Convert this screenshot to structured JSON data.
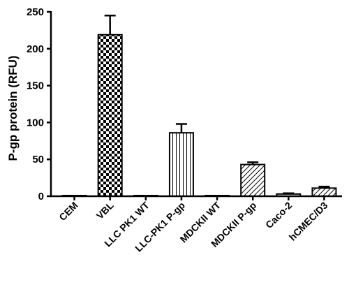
{
  "chart_data": {
    "type": "bar",
    "title": "",
    "xlabel": "",
    "ylabel": "P-gp protein (RFU)",
    "ylim": [
      0,
      250
    ],
    "yticks": [
      0,
      50,
      100,
      150,
      200,
      250
    ],
    "grid": false,
    "legend": "none",
    "categories": [
      "CEM",
      "VBL",
      "LLC PK1 WT",
      "LLC-PK1 P-gp",
      "MDCKII WT",
      "MDCKII P-gp",
      "Caco-2",
      "hCMEC/D3"
    ],
    "values": [
      0.5,
      219,
      0.5,
      86,
      0.5,
      43,
      3,
      11
    ],
    "errors": [
      0,
      26,
      0,
      12,
      0,
      3,
      1,
      2
    ],
    "patterns": [
      "none",
      "checker",
      "none",
      "vertical-lines",
      "none",
      "diagonal-hatch",
      "horizontal-lines",
      "diagonal-hatch"
    ],
    "colors": {
      "bar_stroke": "#000000",
      "bar_fill": "#ffffff"
    }
  }
}
